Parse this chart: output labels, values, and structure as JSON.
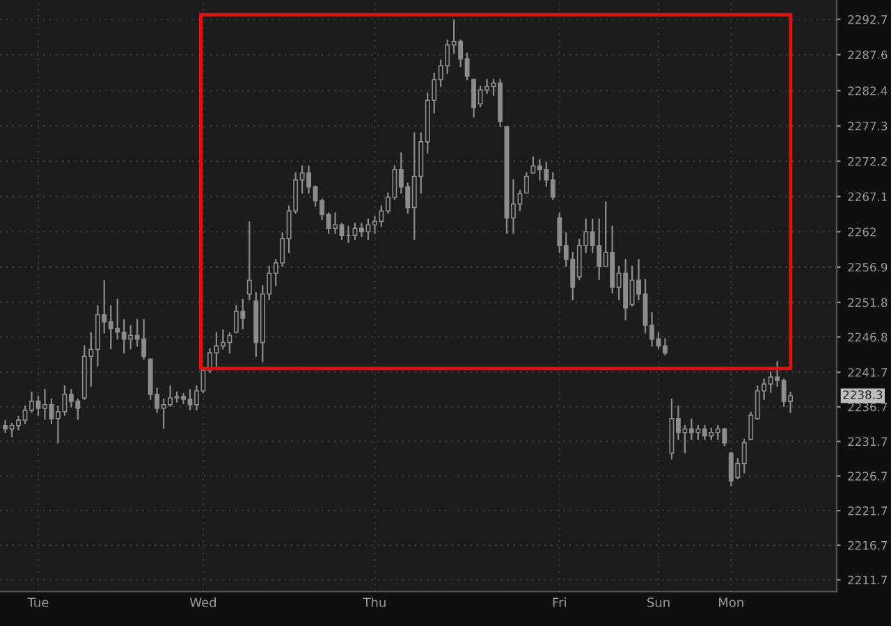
{
  "chart_data": {
    "type": "candlestick",
    "categories": [
      null,
      null,
      null,
      null,
      null,
      "Tue",
      null,
      null,
      null,
      null,
      null,
      null,
      null,
      null,
      null,
      null,
      null,
      null,
      null,
      null,
      null,
      null,
      null,
      null,
      null,
      null,
      null,
      null,
      null,
      null,
      "Wed",
      null,
      null,
      null,
      null,
      null,
      null,
      null,
      null,
      null,
      null,
      null,
      null,
      null,
      null,
      null,
      null,
      null,
      null,
      null,
      null,
      null,
      null,
      null,
      null,
      null,
      "Thu",
      null,
      null,
      null,
      null,
      null,
      null,
      null,
      null,
      null,
      null,
      null,
      null,
      null,
      null,
      null,
      null,
      null,
      null,
      null,
      null,
      null,
      null,
      null,
      null,
      null,
      null,
      null,
      "Fri",
      null,
      null,
      null,
      null,
      null,
      null,
      null,
      null,
      null,
      null,
      null,
      null,
      null,
      null,
      "Sun",
      null,
      null,
      null,
      null,
      null,
      null,
      null,
      null,
      null,
      null,
      "Mon",
      null,
      null,
      null,
      null,
      null,
      null,
      null,
      null,
      null
    ],
    "ohlc": [
      [
        2234.0,
        2234.7,
        2233.0,
        2233.5
      ],
      [
        2233.5,
        2234.3,
        2232.4,
        2234.0
      ],
      [
        2234.0,
        2235.3,
        2233.4,
        2234.8
      ],
      [
        2234.8,
        2236.8,
        2234.3,
        2236.2
      ],
      [
        2236.2,
        2238.8,
        2235.9,
        2237.5
      ],
      [
        2237.5,
        2238.2,
        2235.5,
        2236.5
      ],
      [
        2236.5,
        2239.2,
        2234.9,
        2237.0
      ],
      [
        2237.0,
        2237.8,
        2234.3,
        2235.0
      ],
      [
        2235.0,
        2236.8,
        2231.5,
        2236.0
      ],
      [
        2236.0,
        2239.7,
        2235.5,
        2238.5
      ],
      [
        2238.5,
        2239.2,
        2236.7,
        2237.5
      ],
      [
        2237.5,
        2237.8,
        2234.9,
        2236.5
      ],
      [
        2238.0,
        2245.5,
        2237.8,
        2244.0
      ],
      [
        2244.0,
        2247.4,
        2239.7,
        2245.0
      ],
      [
        2245.0,
        2251.3,
        2242.6,
        2250.0
      ],
      [
        2250.0,
        2254.9,
        2247.4,
        2249.0
      ],
      [
        2249.0,
        2251.3,
        2245.1,
        2248.0
      ],
      [
        2248.0,
        2252.2,
        2246.5,
        2247.5
      ],
      [
        2247.5,
        2249.3,
        2244.5,
        2246.5
      ],
      [
        2246.5,
        2248.4,
        2245.1,
        2247.0
      ],
      [
        2247.0,
        2249.3,
        2245.5,
        2246.5
      ],
      [
        2246.5,
        2249.3,
        2243.6,
        2244.0
      ],
      [
        2243.6,
        2243.6,
        2237.8,
        2238.5
      ],
      [
        2238.5,
        2239.4,
        2235.9,
        2236.5
      ],
      [
        2236.5,
        2237.8,
        2233.6,
        2237.0
      ],
      [
        2237.0,
        2239.7,
        2236.8,
        2238.0
      ],
      [
        2238.0,
        2238.8,
        2237.4,
        2238.2
      ],
      [
        2238.2,
        2238.6,
        2237.2,
        2237.8
      ],
      [
        2237.8,
        2239.2,
        2236.3,
        2237.0
      ],
      [
        2237.0,
        2239.7,
        2236.3,
        2239.0
      ],
      [
        2239.0,
        2242.4,
        2238.8,
        2242.0
      ],
      [
        2242.0,
        2245.1,
        2241.7,
        2244.5
      ],
      [
        2244.5,
        2247.4,
        2242.6,
        2245.5
      ],
      [
        2245.5,
        2247.8,
        2245.1,
        2246.0
      ],
      [
        2246.0,
        2247.4,
        2244.5,
        2247.0
      ],
      [
        2247.5,
        2251.3,
        2247.4,
        2250.5
      ],
      [
        2250.5,
        2252.2,
        2248.0,
        2249.5
      ],
      [
        2253.0,
        2263.4,
        2252.2,
        2255.0
      ],
      [
        2252.0,
        2253.2,
        2244.0,
        2246.0
      ],
      [
        2246.0,
        2254.2,
        2243.2,
        2253.0
      ],
      [
        2253.0,
        2257.0,
        2252.2,
        2256.0
      ],
      [
        2256.0,
        2258.0,
        2254.2,
        2257.5
      ],
      [
        2257.5,
        2261.8,
        2257.0,
        2261.0
      ],
      [
        2261.0,
        2265.7,
        2259.0,
        2265.0
      ],
      [
        2265.0,
        2270.5,
        2264.7,
        2269.5
      ],
      [
        2269.5,
        2271.5,
        2267.6,
        2270.5
      ],
      [
        2270.5,
        2271.5,
        2267.6,
        2268.5
      ],
      [
        2268.5,
        2268.6,
        2265.7,
        2266.5
      ],
      [
        2266.5,
        2266.7,
        2263.8,
        2264.5
      ],
      [
        2264.5,
        2264.7,
        2261.8,
        2262.5
      ],
      [
        2262.5,
        2264.7,
        2261.8,
        2263.0
      ],
      [
        2263.0,
        2263.2,
        2260.9,
        2261.5
      ],
      [
        2261.5,
        2262.8,
        2260.5,
        2261.5
      ],
      [
        2261.5,
        2263.2,
        2260.9,
        2262.5
      ],
      [
        2262.5,
        2263.2,
        2261.3,
        2262.0
      ],
      [
        2262.0,
        2263.8,
        2260.9,
        2263.0
      ],
      [
        2263.0,
        2264.2,
        2261.8,
        2263.5
      ],
      [
        2263.5,
        2265.7,
        2262.8,
        2265.0
      ],
      [
        2265.0,
        2267.6,
        2264.7,
        2267.0
      ],
      [
        2267.0,
        2271.5,
        2266.7,
        2271.0
      ],
      [
        2271.0,
        2273.4,
        2267.6,
        2268.5
      ],
      [
        2268.5,
        2269.0,
        2264.7,
        2265.5
      ],
      [
        2265.5,
        2276.3,
        2260.9,
        2270.0
      ],
      [
        2270.0,
        2276.3,
        2267.6,
        2275.0
      ],
      [
        2275.0,
        2282.0,
        2273.4,
        2281.0
      ],
      [
        2281.0,
        2284.9,
        2279.2,
        2284.0
      ],
      [
        2284.0,
        2286.8,
        2283.0,
        2286.0
      ],
      [
        2286.0,
        2289.7,
        2284.9,
        2289.0
      ],
      [
        2289.0,
        2292.6,
        2287.8,
        2289.5
      ],
      [
        2289.5,
        2289.7,
        2285.9,
        2287.0
      ],
      [
        2287.0,
        2287.8,
        2284.0,
        2284.5
      ],
      [
        2284.0,
        2284.0,
        2278.6,
        2280.0
      ],
      [
        2280.5,
        2283.0,
        2280.1,
        2282.5
      ],
      [
        2282.5,
        2284.0,
        2282.0,
        2283.0
      ],
      [
        2283.0,
        2284.0,
        2281.7,
        2283.5
      ],
      [
        2283.5,
        2284.0,
        2277.2,
        2278.0
      ],
      [
        2277.2,
        2277.2,
        2261.8,
        2264.0
      ],
      [
        2264.0,
        2269.5,
        2261.8,
        2266.0
      ],
      [
        2266.0,
        2268.0,
        2265.1,
        2267.5
      ],
      [
        2267.6,
        2270.5,
        2267.6,
        2270.0
      ],
      [
        2270.5,
        2272.8,
        2270.5,
        2271.5
      ],
      [
        2271.5,
        2272.4,
        2269.5,
        2271.0
      ],
      [
        2271.0,
        2272.0,
        2268.6,
        2269.5
      ],
      [
        2269.5,
        2270.5,
        2266.7,
        2267.0
      ],
      [
        2264.0,
        2264.7,
        2259.0,
        2260.0
      ],
      [
        2260.0,
        2261.8,
        2257.0,
        2258.0
      ],
      [
        2258.0,
        2259.0,
        2252.2,
        2254.0
      ],
      [
        2255.5,
        2260.9,
        2255.1,
        2260.0
      ],
      [
        2260.0,
        2263.8,
        2259.0,
        2262.0
      ],
      [
        2262.0,
        2263.8,
        2259.0,
        2260.0
      ],
      [
        2260.0,
        2263.8,
        2255.1,
        2257.0
      ],
      [
        2257.0,
        2266.3,
        2257.0,
        2259.0
      ],
      [
        2259.0,
        2262.8,
        2253.2,
        2254.0
      ],
      [
        2254.0,
        2257.0,
        2252.2,
        2256.0
      ],
      [
        2256.0,
        2258.0,
        2249.3,
        2251.0
      ],
      [
        2251.5,
        2257.0,
        2251.3,
        2255.0
      ],
      [
        2255.0,
        2258.0,
        2252.2,
        2253.0
      ],
      [
        2253.0,
        2255.1,
        2247.4,
        2248.5
      ],
      [
        2248.5,
        2250.3,
        2245.5,
        2246.5
      ],
      [
        2246.5,
        2247.4,
        2245.1,
        2245.5
      ],
      [
        2245.5,
        2246.5,
        2244.2,
        2244.5
      ],
      [
        2230.0,
        2237.8,
        2229.2,
        2235.0
      ],
      [
        2235.0,
        2236.8,
        2232.0,
        2233.0
      ],
      [
        2233.0,
        2234.0,
        2230.1,
        2233.5
      ],
      [
        2233.5,
        2234.9,
        2232.0,
        2233.0
      ],
      [
        2233.0,
        2234.0,
        2232.0,
        2233.5
      ],
      [
        2233.5,
        2234.0,
        2232.0,
        2232.5
      ],
      [
        2232.5,
        2233.6,
        2232.0,
        2233.0
      ],
      [
        2233.0,
        2234.0,
        2232.0,
        2233.5
      ],
      [
        2233.5,
        2233.6,
        2231.1,
        2231.5
      ],
      [
        2230.0,
        2230.1,
        2225.3,
        2226.0
      ],
      [
        2226.5,
        2229.2,
        2226.3,
        2228.5
      ],
      [
        2228.5,
        2232.0,
        2227.2,
        2231.5
      ],
      [
        2232.0,
        2235.9,
        2232.0,
        2235.5
      ],
      [
        2235.0,
        2239.7,
        2234.9,
        2239.0
      ],
      [
        2239.0,
        2240.7,
        2237.8,
        2240.0
      ],
      [
        2240.0,
        2241.7,
        2238.8,
        2241.0
      ],
      [
        2241.0,
        2243.2,
        2239.7,
        2240.5
      ],
      [
        2240.5,
        2240.7,
        2236.8,
        2237.5
      ],
      [
        2237.5,
        2238.8,
        2235.9,
        2238.3
      ]
    ],
    "color": "#8c8c8c",
    "ylim": [
      2210.0,
      2295.5
    ],
    "yticks": [
      2211.7,
      2216.7,
      2221.7,
      2226.7,
      2231.7,
      2236.7,
      2241.7,
      2246.8,
      2251.8,
      2256.9,
      2262,
      2267.1,
      2272.2,
      2277.3,
      2282.4,
      2287.6,
      2292.7
    ],
    "grid": true,
    "annotations": [
      "2238.3"
    ]
  }
}
